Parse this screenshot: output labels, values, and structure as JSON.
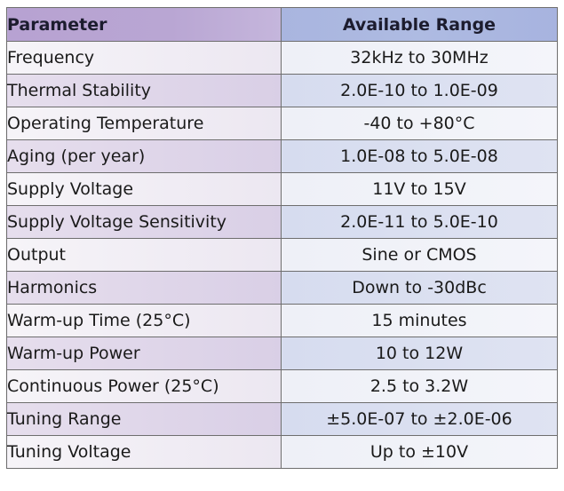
{
  "table": {
    "headers": [
      "Parameter",
      "Available Range"
    ],
    "rows": [
      {
        "parameter": "Frequency",
        "range": "32kHz to 30MHz"
      },
      {
        "parameter": "Thermal Stability",
        "range": "2.0E-10 to 1.0E-09"
      },
      {
        "parameter": "Operating Temperature",
        "range": "-40 to +80°C"
      },
      {
        "parameter": "Aging (per year)",
        "range": "1.0E-08 to 5.0E-08"
      },
      {
        "parameter": "Supply Voltage",
        "range": "11V to 15V"
      },
      {
        "parameter": "Supply Voltage Sensitivity",
        "range": "2.0E-11 to 5.0E-10"
      },
      {
        "parameter": "Output",
        "range": "Sine or CMOS"
      },
      {
        "parameter": "Harmonics",
        "range": "Down to -30dBc"
      },
      {
        "parameter": "Warm-up Time (25°C)",
        "range": "15 minutes"
      },
      {
        "parameter": "Warm-up Power",
        "range": "10 to 12W"
      },
      {
        "parameter": "Continuous Power (25°C)",
        "range": "2.5 to 3.2W"
      },
      {
        "parameter": "Tuning Range",
        "range": "±5.0E-07 to ±2.0E-06"
      },
      {
        "parameter": "Tuning Voltage",
        "range": "Up to ±10V"
      }
    ]
  },
  "colors": {
    "header_left": "#b7a2d2",
    "header_right": "#a9b5df",
    "row_alt_left": "#e0d7ea",
    "row_alt_right": "#d9def0",
    "border": "#6e6e6e"
  }
}
